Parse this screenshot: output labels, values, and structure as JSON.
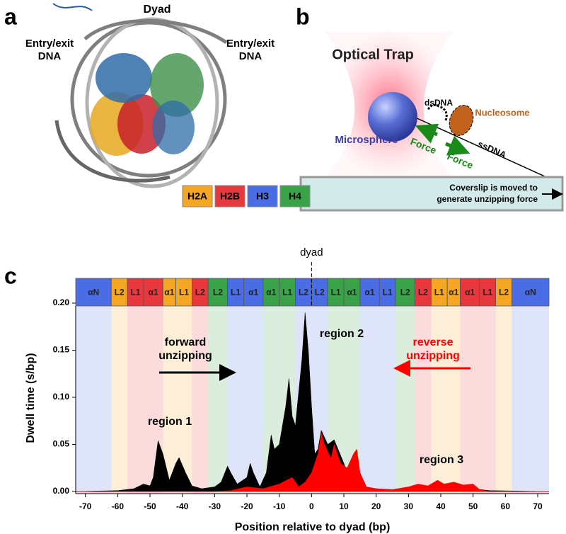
{
  "panel_a": {
    "label": "a",
    "dyad": "Dyad",
    "entry_left": [
      "Entry/exit",
      "DNA"
    ],
    "entry_right": [
      "Entry/exit",
      "DNA"
    ],
    "legend": [
      {
        "name": "H2A",
        "color": "#f5a623"
      },
      {
        "name": "H2B",
        "color": "#e8383d"
      },
      {
        "name": "H3",
        "color": "#4a6de5"
      },
      {
        "name": "H4",
        "color": "#3aa34a"
      }
    ]
  },
  "panel_b": {
    "label": "b",
    "optical_trap": "Optical Trap",
    "microsphere": "Microsphere",
    "dsdna": "dsDNA",
    "nucleosome": "Nucleosome",
    "force": [
      "Force",
      "Force"
    ],
    "ssdna": "ssDNA",
    "coverslip": [
      "Coverslip is moved to",
      "generate unzipping force"
    ]
  },
  "chart_data": {
    "type": "area",
    "panel_label": "c",
    "xlabel": "Position relative to dyad (bp)",
    "ylabel": "Dwell time (s/bp)",
    "xlim": [
      -73,
      73.5
    ],
    "ylim": [
      0,
      0.2
    ],
    "xticks": [
      -70,
      -60,
      -50,
      -40,
      -30,
      -20,
      -10,
      0,
      10,
      20,
      30,
      40,
      50,
      60,
      70
    ],
    "yticks": [
      {
        "value": 0,
        "label": "0.00"
      },
      {
        "value": 0.05,
        "label": "0.05"
      },
      {
        "value": 0.1,
        "label": "0.10"
      },
      {
        "value": 0.15,
        "label": "0.15"
      },
      {
        "value": 0.2,
        "label": "0.20"
      }
    ],
    "domains": {
      "labels": [
        "αN",
        "L2",
        "L1",
        "α1",
        "α1",
        "L1",
        "L2",
        "L2",
        "L1",
        "α1",
        "α1",
        "L1",
        "L2",
        "L2",
        "L1",
        "α1",
        "α1",
        "L1",
        "L2",
        "L2",
        "L1",
        "α1",
        "α1",
        "L1",
        "L2",
        "αN"
      ],
      "colors": [
        "#4a6de5",
        "#f5a623",
        "#e8383d",
        "#e8383d",
        "#f5a623",
        "#f5a623",
        "#e8383d",
        "#3aa34a",
        "#4a6de5",
        "#4a6de5",
        "#3aa34a",
        "#3aa34a",
        "#4a6de5",
        "#4a6de5",
        "#3aa34a",
        "#3aa34a",
        "#4a6de5",
        "#4a6de5",
        "#3aa34a",
        "#e8383d",
        "#f5a623",
        "#f5a623",
        "#e8383d",
        "#e8383d",
        "#f5a623",
        "#4a6de5"
      ],
      "edges": [
        -73,
        -62,
        -57,
        -52,
        -46,
        -42,
        -37,
        -32,
        -26,
        -21,
        -15,
        -10,
        -5,
        0,
        5,
        10,
        15,
        21,
        26,
        32,
        37,
        42,
        46,
        52,
        57,
        62,
        73.5
      ]
    },
    "annotations": {
      "dyad": "dyad",
      "forward": [
        "forward",
        "unzipping"
      ],
      "reverse": [
        "reverse",
        "unzipping"
      ],
      "region1": "region 1",
      "region2": "region 2",
      "region3": "region 3"
    },
    "series": [
      {
        "color": "#000000",
        "x": [
          -73,
          -60,
          -55,
          -52,
          -50,
          -49,
          -47.5,
          -46,
          -44,
          -42,
          -41,
          -39,
          -37,
          -34,
          -30,
          -28,
          -26,
          -25,
          -23,
          -20,
          -19,
          -18,
          -16,
          -14,
          -12.5,
          -11.5,
          -10,
          -8,
          -7,
          -6,
          -5,
          -3,
          -2,
          -1,
          0,
          1,
          2,
          3,
          5,
          7,
          10,
          12,
          14,
          16,
          20,
          25,
          30,
          40,
          50,
          55,
          73.5
        ],
        "values": [
          0,
          0.001,
          0.003,
          0.008,
          0.006,
          0.015,
          0.054,
          0.04,
          0.012,
          0.03,
          0.036,
          0.02,
          0.006,
          0.003,
          0.005,
          0.01,
          0.027,
          0.02,
          0.008,
          0.015,
          0.03,
          0.02,
          0.005,
          0.02,
          0.06,
          0.045,
          0.05,
          0.09,
          0.12,
          0.08,
          0.07,
          0.14,
          0.19,
          0.15,
          0.09,
          0.04,
          0.045,
          0.065,
          0.05,
          0.055,
          0.03,
          0.01,
          0.012,
          0.005,
          0.003,
          0.002,
          0.003,
          0.004,
          0.003,
          0.001,
          0
        ]
      },
      {
        "color": "#ff0000",
        "x": [
          -73,
          -30,
          -25,
          -20,
          -15,
          -10,
          -6,
          -4,
          -2,
          0,
          2,
          3,
          4,
          6,
          7,
          9,
          11,
          13,
          14,
          15,
          17,
          20,
          25,
          30,
          33,
          36,
          39,
          41,
          44,
          47,
          50,
          52,
          55,
          73.5
        ],
        "values": [
          0,
          0,
          0.001,
          0.005,
          0.003,
          0.008,
          0.015,
          0.005,
          0.01,
          0.02,
          0.04,
          0.062,
          0.05,
          0.035,
          0.05,
          0.03,
          0.025,
          0.04,
          0.045,
          0.02,
          0.005,
          0.003,
          0.002,
          0.005,
          0.008,
          0.006,
          0.012,
          0.008,
          0.01,
          0.007,
          0.008,
          0.002,
          0,
          0
        ]
      }
    ]
  }
}
